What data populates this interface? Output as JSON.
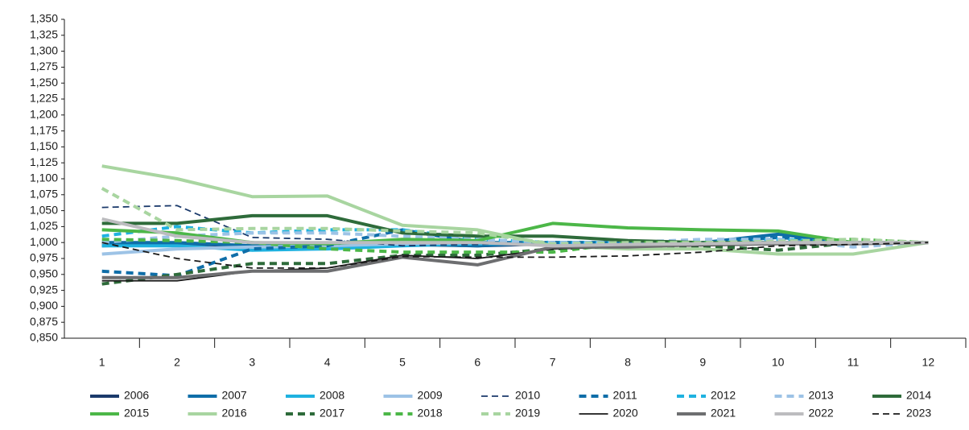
{
  "chart_data": {
    "type": "line",
    "categories": [
      "1",
      "2",
      "3",
      "4",
      "5",
      "6",
      "7",
      "8",
      "9",
      "10",
      "11",
      "12"
    ],
    "ylim": [
      0.85,
      1.35
    ],
    "yticks": [
      {
        "value": 0.85,
        "label": "0,850"
      },
      {
        "value": 0.875,
        "label": "0,875"
      },
      {
        "value": 0.9,
        "label": "0,900"
      },
      {
        "value": 0.925,
        "label": "0,925"
      },
      {
        "value": 0.95,
        "label": "0,950"
      },
      {
        "value": 0.975,
        "label": "0,975"
      },
      {
        "value": 1.0,
        "label": "1,000"
      },
      {
        "value": 1.025,
        "label": "1,025"
      },
      {
        "value": 1.05,
        "label": "1,050"
      },
      {
        "value": 1.075,
        "label": "1,075"
      },
      {
        "value": 1.1,
        "label": "1,100"
      },
      {
        "value": 1.125,
        "label": "1,125"
      },
      {
        "value": 1.15,
        "label": "1,150"
      },
      {
        "value": 1.175,
        "label": "1,175"
      },
      {
        "value": 1.2,
        "label": "1,200"
      },
      {
        "value": 1.225,
        "label": "1,225"
      },
      {
        "value": 1.25,
        "label": "1,250"
      },
      {
        "value": 1.275,
        "label": "1,275"
      },
      {
        "value": 1.3,
        "label": "1,300"
      },
      {
        "value": 1.325,
        "label": "1,325"
      },
      {
        "value": 1.35,
        "label": "1,350"
      }
    ],
    "grid": false,
    "legend": "bottom",
    "series": [
      {
        "name": "2006",
        "color": "#1b3a6b",
        "style": "solid",
        "values": [
          0.995,
          0.998,
          0.995,
          0.997,
          0.997,
          0.995,
          0.998,
          0.998,
          0.999,
          1.0,
          1.0,
          1.0
        ]
      },
      {
        "name": "2007",
        "color": "#0f6ea8",
        "style": "solid",
        "values": [
          1.0,
          1.0,
          0.995,
          0.995,
          0.998,
          0.995,
          1.0,
          1.0,
          1.0,
          1.013,
          1.0,
          1.0
        ]
      },
      {
        "name": "2008",
        "color": "#1fb2e0",
        "style": "solid",
        "values": [
          0.995,
          0.995,
          0.988,
          0.99,
          0.995,
          0.998,
          1.0,
          1.0,
          1.0,
          1.0,
          1.0,
          1.0
        ]
      },
      {
        "name": "2009",
        "color": "#9dc3e6",
        "style": "solid",
        "values": [
          0.982,
          0.99,
          0.993,
          0.995,
          0.998,
          1.0,
          1.0,
          1.0,
          1.0,
          1.0,
          1.0,
          1.0
        ]
      },
      {
        "name": "2010",
        "color": "#1b3a6b",
        "style": "thin-dashed",
        "values": [
          1.055,
          1.058,
          1.008,
          1.005,
          0.995,
          0.997,
          1.0,
          1.0,
          1.0,
          1.0,
          1.0,
          1.0
        ]
      },
      {
        "name": "2011",
        "color": "#0f6ea8",
        "style": "dashed",
        "values": [
          0.955,
          0.948,
          0.99,
          0.995,
          1.02,
          1.0,
          1.0,
          1.0,
          1.0,
          1.008,
          1.0,
          1.0
        ]
      },
      {
        "name": "2012",
        "color": "#1fb2e0",
        "style": "dashed",
        "values": [
          1.01,
          1.025,
          1.015,
          1.02,
          1.02,
          1.005,
          1.0,
          1.0,
          1.0,
          1.005,
          1.0,
          1.0
        ]
      },
      {
        "name": "2013",
        "color": "#9dc3e6",
        "style": "dashed",
        "values": [
          1.0,
          1.01,
          1.015,
          1.015,
          1.01,
          1.005,
          1.0,
          1.0,
          1.005,
          1.005,
          0.993,
          1.0
        ]
      },
      {
        "name": "2014",
        "color": "#2e6b3a",
        "style": "solid",
        "values": [
          1.03,
          1.03,
          1.042,
          1.042,
          1.015,
          1.01,
          1.01,
          1.003,
          1.0,
          1.0,
          1.0,
          1.0
        ]
      },
      {
        "name": "2015",
        "color": "#4cb748",
        "style": "solid",
        "values": [
          1.02,
          1.015,
          1.0,
          0.998,
          1.005,
          1.003,
          1.03,
          1.023,
          1.02,
          1.018,
          1.0,
          1.0
        ]
      },
      {
        "name": "2016",
        "color": "#a8d5a0",
        "style": "solid",
        "values": [
          1.12,
          1.1,
          1.072,
          1.073,
          1.027,
          1.02,
          0.995,
          0.99,
          0.99,
          0.982,
          0.982,
          1.0
        ]
      },
      {
        "name": "2017",
        "color": "#2e6b3a",
        "style": "dashed",
        "values": [
          0.935,
          0.95,
          0.967,
          0.967,
          0.98,
          0.98,
          0.99,
          0.995,
          0.995,
          0.988,
          1.0,
          1.0
        ]
      },
      {
        "name": "2018",
        "color": "#4cb748",
        "style": "dashed",
        "values": [
          1.005,
          1.003,
          1.0,
          0.99,
          0.985,
          0.985,
          0.985,
          1.0,
          1.0,
          1.0,
          1.005,
          1.0
        ]
      },
      {
        "name": "2019",
        "color": "#a8d5a0",
        "style": "dashed",
        "values": [
          1.085,
          1.02,
          1.022,
          1.022,
          1.018,
          1.015,
          0.998,
          1.0,
          1.0,
          1.002,
          1.005,
          1.0
        ]
      },
      {
        "name": "2020",
        "color": "#1a1a1a",
        "style": "thin",
        "values": [
          0.94,
          0.94,
          0.955,
          0.96,
          0.98,
          0.975,
          0.99,
          0.993,
          0.995,
          0.997,
          0.998,
          1.0
        ]
      },
      {
        "name": "2021",
        "color": "#6d6e70",
        "style": "solid",
        "values": [
          0.945,
          0.945,
          0.955,
          0.955,
          0.977,
          0.965,
          0.993,
          0.993,
          0.997,
          0.998,
          0.998,
          1.0
        ]
      },
      {
        "name": "2022",
        "color": "#bcbcbf",
        "style": "solid",
        "values": [
          1.037,
          1.01,
          1.0,
          1.0,
          1.0,
          1.0,
          0.995,
          0.997,
          0.998,
          1.0,
          1.0,
          1.0
        ]
      },
      {
        "name": "2023",
        "color": "#1a1a1a",
        "style": "thin-dashed",
        "values": [
          1.0,
          0.975,
          0.96,
          0.96,
          0.978,
          0.977,
          0.977,
          0.979,
          0.985,
          0.995,
          0.997,
          1.0
        ]
      }
    ]
  }
}
